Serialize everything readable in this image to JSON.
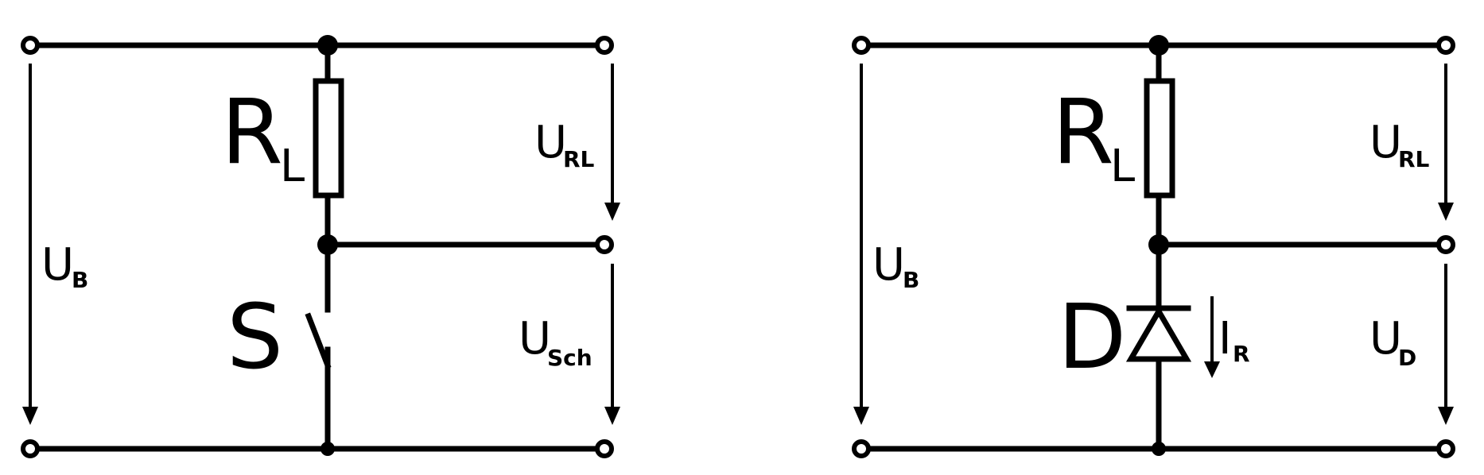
{
  "left_circuit": {
    "resistor": {
      "letter": "R",
      "sub": "L"
    },
    "switch": {
      "letter": "S"
    },
    "supply_voltage": {
      "base": "U",
      "sub": "B"
    },
    "resistor_voltage": {
      "base": "U",
      "sub": "RL"
    },
    "switch_voltage": {
      "base": "U",
      "sub": "Sch"
    }
  },
  "right_circuit": {
    "resistor": {
      "letter": "R",
      "sub": "L"
    },
    "diode": {
      "letter": "D"
    },
    "supply_voltage": {
      "base": "U",
      "sub": "B"
    },
    "resistor_voltage": {
      "base": "U",
      "sub": "RL"
    },
    "diode_voltage": {
      "base": "U",
      "sub": "D"
    },
    "reverse_current": {
      "base": "I",
      "sub": "R"
    }
  }
}
